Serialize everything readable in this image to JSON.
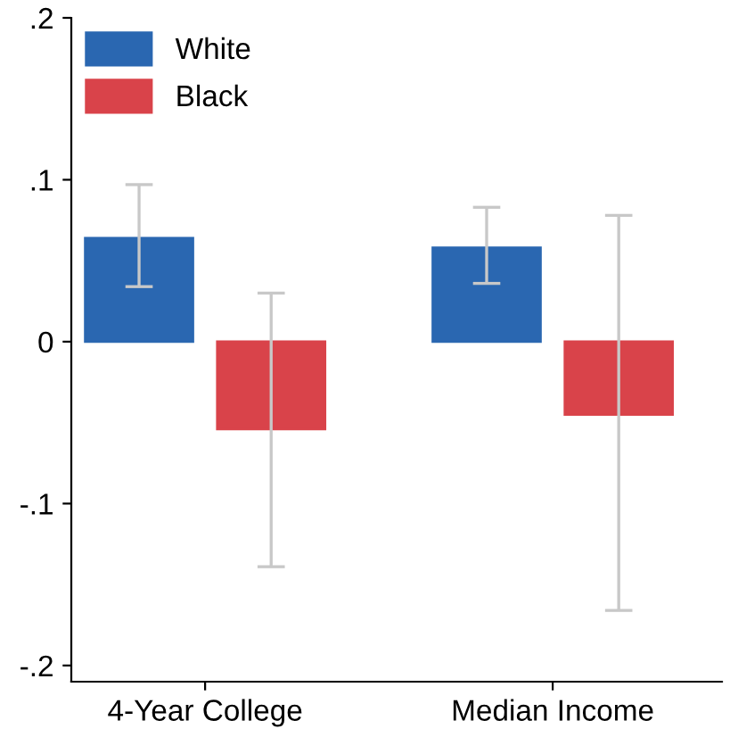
{
  "chart_data": {
    "type": "bar",
    "categories": [
      "4-Year College",
      "Median Income"
    ],
    "series": [
      {
        "name": "White",
        "color": "#2a67b1",
        "values": [
          0.064,
          0.058
        ],
        "errors": [
          [
            0.034,
            0.097
          ],
          [
            0.036,
            0.083
          ]
        ]
      },
      {
        "name": "Black",
        "color": "#d9434a",
        "values": [
          -0.054,
          -0.045
        ],
        "errors": [
          [
            -0.139,
            0.03
          ],
          [
            -0.166,
            0.078
          ]
        ]
      }
    ],
    "ylim": [
      -0.21,
      0.2
    ],
    "yticks": [
      {
        "value": 0.2,
        "label": ".2"
      },
      {
        "value": 0.1,
        "label": ".1"
      },
      {
        "value": 0,
        "label": "0"
      },
      {
        "value": -0.1,
        "label": "-.1"
      },
      {
        "value": -0.2,
        "label": "-.2"
      }
    ],
    "grid": false,
    "legend": "top left"
  }
}
